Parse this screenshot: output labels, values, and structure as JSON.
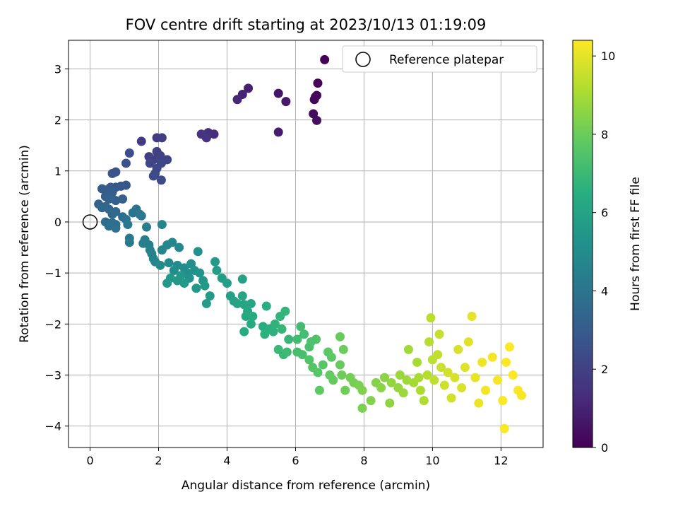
{
  "chart_data": {
    "type": "scatter",
    "title": "FOV centre drift starting at 2023/10/13 01:19:09",
    "xlabel": "Angular distance from reference (arcmin)",
    "ylabel": "Rotation from reference (arcmin)",
    "xlim": [
      -0.63,
      13.23
    ],
    "ylim": [
      -4.42,
      3.56
    ],
    "xticks": [
      0,
      2,
      4,
      6,
      8,
      10,
      12
    ],
    "yticks": [
      -4,
      -3,
      -2,
      -1,
      0,
      1,
      2,
      3
    ],
    "grid": true,
    "legend": {
      "position": "top-right",
      "entries": [
        "Reference platepar"
      ]
    },
    "reference_point": {
      "name": "Reference platepar",
      "x": 0,
      "y": 0
    },
    "colorbar": {
      "label": "Hours from first FF file",
      "range": [
        0,
        10.4
      ],
      "ticks": [
        0,
        2,
        4,
        6,
        8,
        10
      ],
      "colormap": "viridis"
    },
    "series": [
      {
        "color_value_name": "hours",
        "points": [
          [
            6.85,
            3.18,
            0.05
          ],
          [
            6.65,
            2.72,
            0.1
          ],
          [
            6.62,
            2.48,
            0.15
          ],
          [
            6.55,
            2.4,
            0.2
          ],
          [
            6.58,
            2.45,
            0.25
          ],
          [
            6.52,
            2.12,
            0.3
          ],
          [
            6.62,
            1.99,
            0.35
          ],
          [
            5.5,
            2.52,
            0.6
          ],
          [
            5.72,
            2.36,
            0.7
          ],
          [
            5.5,
            1.76,
            0.8
          ],
          [
            4.62,
            2.62,
            0.95
          ],
          [
            4.45,
            2.5,
            1.05
          ],
          [
            4.3,
            2.4,
            1.15
          ],
          [
            3.62,
            1.72,
            1.35
          ],
          [
            3.45,
            1.75,
            1.4
          ],
          [
            3.35,
            1.7,
            1.45
          ],
          [
            3.25,
            1.72,
            1.5
          ],
          [
            3.4,
            1.65,
            1.55
          ],
          [
            1.5,
            1.58,
            1.75
          ],
          [
            1.95,
            1.65,
            1.8
          ],
          [
            2.1,
            1.65,
            1.85
          ],
          [
            1.72,
            1.28,
            1.9
          ],
          [
            1.85,
            1.22,
            1.95
          ],
          [
            1.95,
            1.38,
            2.0
          ],
          [
            2.05,
            1.3,
            2.05
          ],
          [
            2.25,
            1.22,
            2.1
          ],
          [
            1.75,
            1.15,
            2.15
          ],
          [
            1.95,
            1.05,
            2.2
          ],
          [
            2.08,
            1.15,
            2.25
          ],
          [
            1.9,
            0.95,
            2.3
          ],
          [
            1.85,
            0.9,
            2.35
          ],
          [
            2.08,
            0.82,
            2.4
          ],
          [
            1.15,
            1.35,
            2.5
          ],
          [
            1.05,
            1.15,
            2.55
          ],
          [
            0.75,
            0.98,
            2.6
          ],
          [
            0.65,
            0.95,
            2.65
          ],
          [
            1.05,
            0.72,
            2.75
          ],
          [
            0.9,
            0.7,
            2.8
          ],
          [
            0.75,
            0.68,
            2.85
          ],
          [
            0.6,
            0.68,
            2.9
          ],
          [
            0.55,
            0.65,
            2.95
          ],
          [
            0.35,
            0.65,
            3.0
          ],
          [
            0.45,
            0.5,
            3.05
          ],
          [
            0.65,
            0.58,
            3.1
          ],
          [
            0.95,
            0.45,
            3.15
          ],
          [
            0.75,
            0.42,
            3.2
          ],
          [
            0.55,
            0.45,
            3.25
          ],
          [
            0.25,
            0.35,
            3.3
          ],
          [
            0.45,
            0.3,
            3.35
          ],
          [
            0.55,
            0.25,
            3.4
          ],
          [
            0.35,
            0.28,
            3.45
          ],
          [
            0.75,
            0.2,
            3.5
          ],
          [
            0.65,
            0.15,
            3.55
          ],
          [
            0.95,
            0.1,
            3.6
          ],
          [
            0.45,
            0.0,
            3.65
          ],
          [
            0.65,
            -0.02,
            3.7
          ],
          [
            0.75,
            -0.05,
            3.75
          ],
          [
            0.55,
            -0.08,
            3.8
          ],
          [
            0.75,
            -0.12,
            3.85
          ],
          [
            1.05,
            0.05,
            3.9
          ],
          [
            1.35,
            0.25,
            3.95
          ],
          [
            1.25,
            0.18,
            4.0
          ],
          [
            1.45,
            0.15,
            4.05
          ],
          [
            1.5,
            0.12,
            4.1
          ],
          [
            1.1,
            -0.05,
            4.15
          ],
          [
            1.15,
            -0.32,
            4.2
          ],
          [
            1.15,
            -0.4,
            4.25
          ],
          [
            1.65,
            -0.1,
            4.3
          ],
          [
            1.6,
            -0.35,
            4.35
          ],
          [
            1.72,
            -0.45,
            4.4
          ],
          [
            1.55,
            -0.42,
            4.45
          ],
          [
            1.75,
            -0.55,
            4.5
          ],
          [
            1.8,
            -0.62,
            4.55
          ],
          [
            1.85,
            -0.72,
            4.6
          ],
          [
            1.9,
            -0.78,
            4.65
          ],
          [
            2.1,
            -0.05,
            4.65
          ],
          [
            2.1,
            -0.55,
            4.7
          ],
          [
            2.25,
            -0.45,
            4.75
          ],
          [
            2.4,
            -0.4,
            4.8
          ],
          [
            2.6,
            -0.5,
            4.85
          ],
          [
            2.3,
            -0.8,
            4.9
          ],
          [
            2.05,
            -0.85,
            4.9
          ],
          [
            2.55,
            -0.85,
            4.95
          ],
          [
            2.45,
            -0.95,
            5.0
          ],
          [
            2.75,
            -0.9,
            5.05
          ],
          [
            2.85,
            -1.0,
            5.1
          ],
          [
            2.95,
            -0.82,
            5.15
          ],
          [
            3.15,
            -0.58,
            5.2
          ],
          [
            3.05,
            -0.95,
            5.25
          ],
          [
            2.9,
            -1.1,
            5.3
          ],
          [
            3.2,
            -1.0,
            5.35
          ],
          [
            3.3,
            -1.15,
            5.4
          ],
          [
            3.1,
            -1.3,
            5.45
          ],
          [
            2.65,
            -1.05,
            5.45
          ],
          [
            2.55,
            -1.15,
            5.5
          ],
          [
            2.25,
            -1.2,
            5.5
          ],
          [
            2.35,
            -1.1,
            5.55
          ],
          [
            2.75,
            -1.2,
            5.55
          ],
          [
            3.35,
            -1.25,
            5.6
          ],
          [
            3.5,
            -1.45,
            5.65
          ],
          [
            3.4,
            -1.6,
            5.7
          ],
          [
            3.65,
            -0.78,
            5.6
          ],
          [
            3.7,
            -0.95,
            5.7
          ],
          [
            3.85,
            -1.1,
            5.75
          ],
          [
            4.0,
            -1.2,
            5.8
          ],
          [
            4.1,
            -1.45,
            5.85
          ],
          [
            4.45,
            -1.12,
            5.9
          ],
          [
            4.2,
            -1.55,
            5.95
          ],
          [
            4.3,
            -1.6,
            6.0
          ],
          [
            4.45,
            -1.45,
            6.05
          ],
          [
            4.5,
            -1.62,
            6.1
          ],
          [
            4.6,
            -1.75,
            6.15
          ],
          [
            4.7,
            -1.6,
            6.2
          ],
          [
            4.55,
            -1.85,
            6.25
          ],
          [
            4.7,
            -2.0,
            6.3
          ],
          [
            4.5,
            -2.15,
            6.35
          ],
          [
            4.75,
            -1.85,
            6.4
          ],
          [
            5.05,
            -2.05,
            6.45
          ],
          [
            5.15,
            -1.65,
            6.5
          ],
          [
            5.25,
            -2.1,
            6.55
          ],
          [
            5.1,
            -2.2,
            6.6
          ],
          [
            5.35,
            -2.15,
            6.65
          ],
          [
            5.4,
            -2.0,
            6.7
          ],
          [
            5.55,
            -1.85,
            6.75
          ],
          [
            5.7,
            -1.75,
            6.8
          ],
          [
            5.6,
            -2.1,
            6.85
          ],
          [
            5.8,
            -2.3,
            6.9
          ],
          [
            5.5,
            -2.5,
            6.95
          ],
          [
            5.65,
            -2.6,
            7.0
          ],
          [
            5.75,
            -2.55,
            7.05
          ],
          [
            6.05,
            -2.3,
            7.1
          ],
          [
            6.15,
            -2.05,
            7.15
          ],
          [
            6.25,
            -2.2,
            7.2
          ],
          [
            6.05,
            -2.55,
            7.25
          ],
          [
            6.2,
            -2.6,
            7.3
          ],
          [
            6.4,
            -2.45,
            7.35
          ],
          [
            6.45,
            -2.35,
            7.4
          ],
          [
            6.6,
            -2.3,
            7.45
          ],
          [
            6.4,
            -2.7,
            7.5
          ],
          [
            6.5,
            -2.85,
            7.55
          ],
          [
            6.65,
            -2.95,
            7.6
          ],
          [
            6.8,
            -2.8,
            7.65
          ],
          [
            6.95,
            -2.55,
            7.7
          ],
          [
            7.05,
            -2.65,
            7.75
          ],
          [
            6.7,
            -3.3,
            7.8
          ],
          [
            7.0,
            -3.0,
            7.85
          ],
          [
            7.1,
            -3.1,
            7.9
          ],
          [
            7.3,
            -2.8,
            7.95
          ],
          [
            7.3,
            -2.25,
            7.95
          ],
          [
            7.4,
            -2.5,
            8.0
          ],
          [
            7.35,
            -3.0,
            8.05
          ],
          [
            7.45,
            -3.3,
            8.1
          ],
          [
            7.6,
            -3.05,
            8.15
          ],
          [
            7.7,
            -3.15,
            8.2
          ],
          [
            7.85,
            -3.2,
            8.25
          ],
          [
            7.95,
            -3.65,
            8.3
          ],
          [
            7.95,
            -3.3,
            8.35
          ],
          [
            8.2,
            -3.5,
            8.4
          ],
          [
            8.35,
            -3.15,
            8.45
          ],
          [
            8.5,
            -3.25,
            8.5
          ],
          [
            8.6,
            -3.05,
            8.55
          ],
          [
            8.75,
            -3.55,
            8.6
          ],
          [
            8.8,
            -3.15,
            8.65
          ],
          [
            9.0,
            -3.25,
            8.7
          ],
          [
            9.05,
            -3.0,
            8.75
          ],
          [
            9.15,
            -3.35,
            8.8
          ],
          [
            9.25,
            -3.1,
            8.85
          ],
          [
            9.3,
            -2.5,
            8.9
          ],
          [
            9.45,
            -3.15,
            8.95
          ],
          [
            9.55,
            -2.75,
            9.0
          ],
          [
            9.6,
            -3.05,
            9.05
          ],
          [
            9.65,
            -3.3,
            9.1
          ],
          [
            9.75,
            -3.5,
            9.15
          ],
          [
            9.85,
            -3.0,
            9.2
          ],
          [
            9.9,
            -2.35,
            9.25
          ],
          [
            9.95,
            -1.88,
            9.3
          ],
          [
            10.0,
            -2.7,
            9.35
          ],
          [
            10.05,
            -3.1,
            9.4
          ],
          [
            10.15,
            -2.6,
            9.45
          ],
          [
            10.2,
            -2.2,
            9.5
          ],
          [
            10.25,
            -2.85,
            9.55
          ],
          [
            10.35,
            -3.2,
            9.6
          ],
          [
            10.45,
            -2.95,
            9.65
          ],
          [
            10.55,
            -3.45,
            9.7
          ],
          [
            10.65,
            -3.05,
            9.75
          ],
          [
            10.75,
            -2.5,
            9.8
          ],
          [
            10.85,
            -3.25,
            9.85
          ],
          [
            10.95,
            -2.85,
            9.9
          ],
          [
            11.05,
            -2.35,
            9.95
          ],
          [
            11.15,
            -1.85,
            10.0
          ],
          [
            11.25,
            -3.05,
            10.05
          ],
          [
            11.35,
            -3.55,
            10.1
          ],
          [
            11.45,
            -2.75,
            10.15
          ],
          [
            11.55,
            -3.3,
            10.2
          ],
          [
            11.75,
            -2.65,
            10.25
          ],
          [
            11.9,
            -3.1,
            10.3
          ],
          [
            12.05,
            -3.5,
            10.35
          ],
          [
            12.15,
            -2.75,
            10.4
          ],
          [
            12.25,
            -2.45,
            10.4
          ],
          [
            12.35,
            -3.0,
            10.4
          ],
          [
            12.1,
            -4.05,
            10.35
          ],
          [
            12.5,
            -3.3,
            10.35
          ],
          [
            12.6,
            -3.4,
            10.3
          ]
        ]
      }
    ]
  }
}
